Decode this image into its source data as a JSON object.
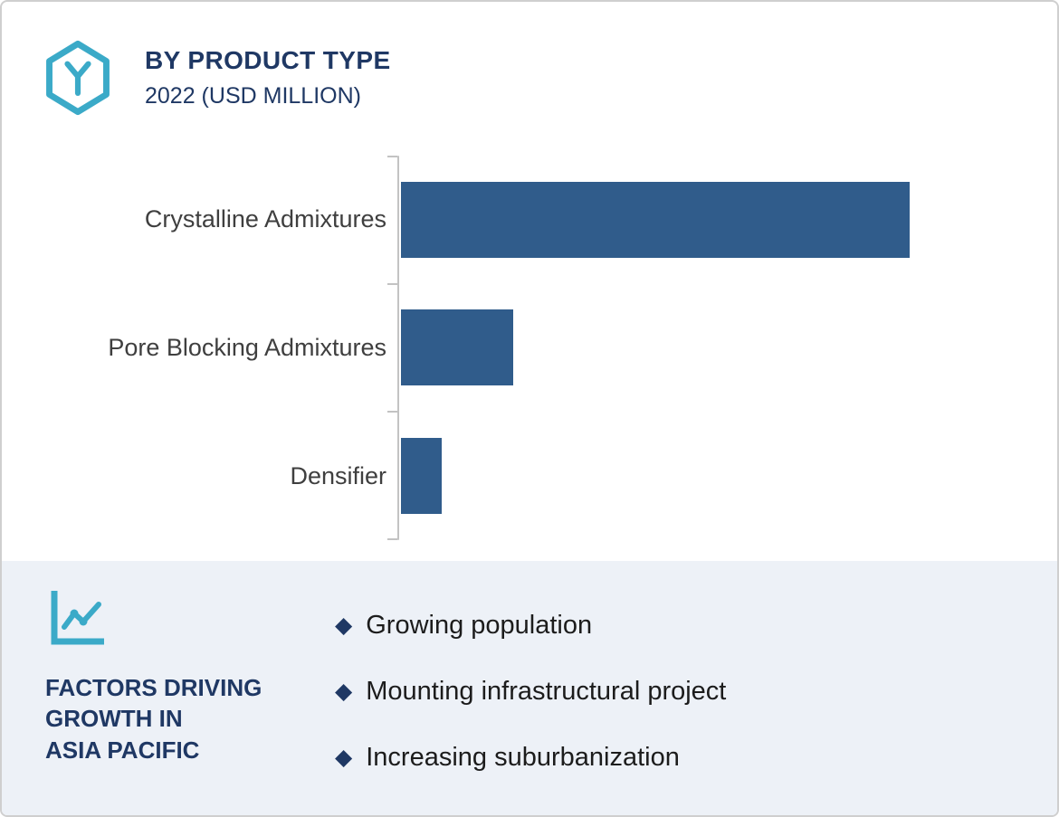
{
  "header": {
    "title": "BY PRODUCT TYPE",
    "subtitle": "2022 (USD MILLION)"
  },
  "chart_data": {
    "type": "bar",
    "orientation": "horizontal",
    "title": "BY PRODUCT TYPE",
    "subtitle": "2022 (USD MILLION)",
    "categories": [
      "Crystalline Admixtures",
      "Pore Blocking Admixtures",
      "Densifier"
    ],
    "values": [
      100,
      22,
      8
    ],
    "xlim": [
      0,
      100
    ],
    "xlabel": "",
    "ylabel": "",
    "grid": false,
    "legend": false,
    "bar_color": "#305C8B",
    "axis_color": "#C3C3C3"
  },
  "footer": {
    "heading": "FACTORS DRIVING GROWTH IN ASIA PACIFIC",
    "heading_lines": [
      "FACTORS DRIVING",
      "GROWTH IN",
      "ASIA PACIFIC"
    ],
    "bullet_glyph": "◆",
    "bullets": [
      "Growing population",
      "Mounting infrastructural project",
      "Increasing suburbanization"
    ]
  },
  "colors": {
    "navy": "#1F3864",
    "teal": "#3BAAC8",
    "bar_blue": "#305C8B",
    "panel_bg": "#EDF1F7",
    "label_text": "#3F3F3F"
  }
}
